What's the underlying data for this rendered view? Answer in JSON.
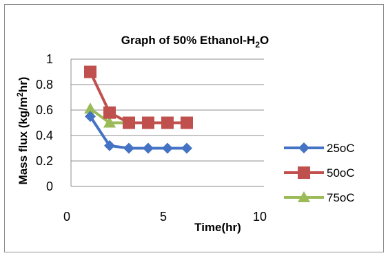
{
  "chart_data": {
    "type": "line",
    "title": "Graph of 50% Ethanol-H",
    "title_sub": "2",
    "title_tail": "O",
    "xlabel": "Time(hr)",
    "ylabel_main": "Mass flux (kg/m",
    "ylabel_sup": "2",
    "ylabel_tail": "hr)",
    "xlim": [
      0,
      10
    ],
    "ylim": [
      0,
      1
    ],
    "x_ticks": [
      "0",
      "5",
      "10"
    ],
    "y_ticks": [
      "0",
      "0.2",
      "0.4",
      "0.6",
      "0.8",
      "1"
    ],
    "grid": "horizontal",
    "legend_position": "right",
    "series": [
      {
        "name": "25oC",
        "color": "#4472C4",
        "marker": "diamond",
        "x": [
          1,
          2,
          3,
          4,
          5,
          6
        ],
        "y": [
          0.55,
          0.32,
          0.3,
          0.3,
          0.3,
          0.3
        ]
      },
      {
        "name": "50oC",
        "color": "#C0504D",
        "marker": "square",
        "x": [
          1,
          2,
          3,
          4,
          5,
          6
        ],
        "y": [
          0.9,
          0.58,
          0.5,
          0.5,
          0.5,
          0.5
        ]
      },
      {
        "name": "75oC",
        "color": "#9BBB59",
        "marker": "triangle",
        "x": [
          1,
          2,
          3,
          4,
          5
        ],
        "y": [
          0.61,
          0.5,
          0.5,
          0.5,
          0.5
        ]
      }
    ]
  }
}
